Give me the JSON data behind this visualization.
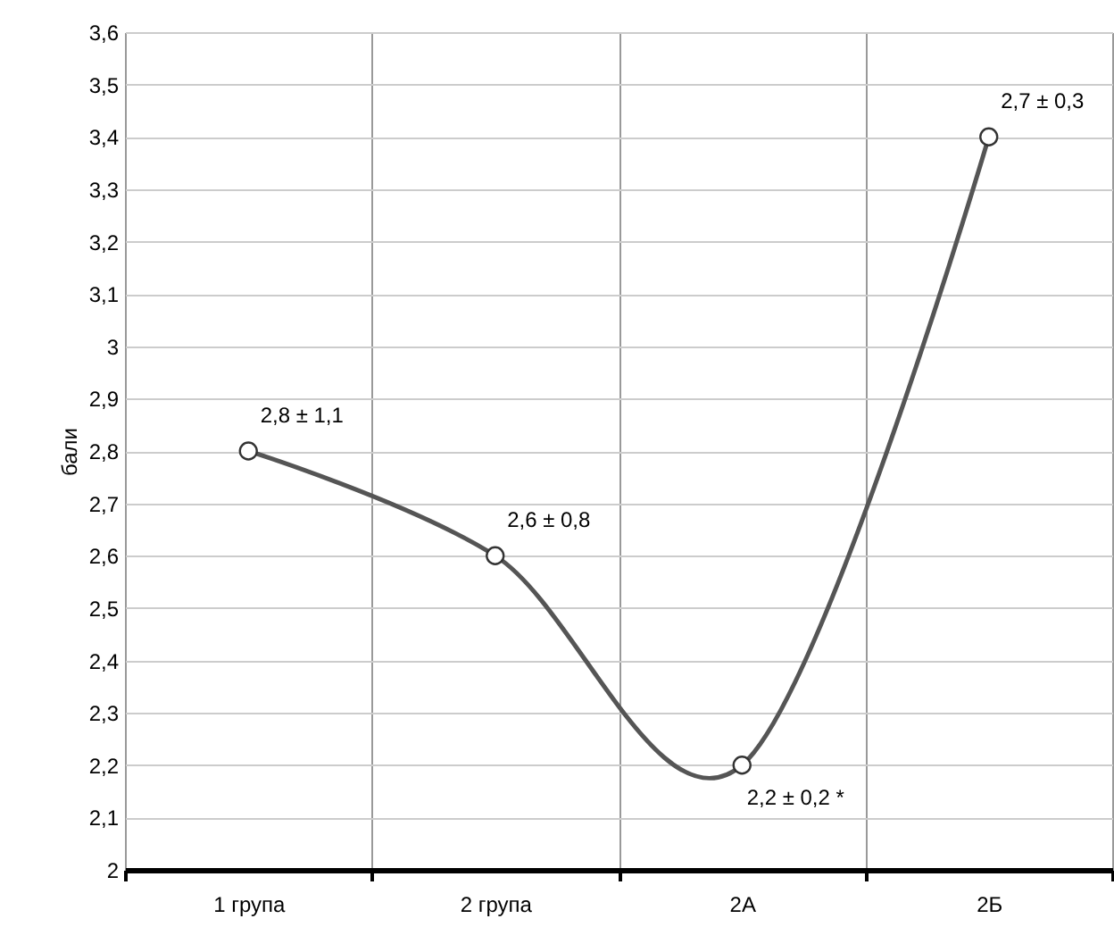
{
  "chart_data": {
    "type": "line",
    "ylabel": "бали",
    "categories": [
      "1 група",
      "2 група",
      "2А",
      "2Б"
    ],
    "series": [
      {
        "color": "#555555",
        "values": [
          2.8,
          2.6,
          2.2,
          3.4
        ]
      }
    ],
    "value_labels": [
      "2,8 ± 1,1",
      "2,6 ± 0,8",
      "2,2 ± 0,2 *",
      "2,7 ± 0,3"
    ],
    "ylim": [
      2,
      3.6
    ],
    "yticks": [
      2,
      {
        "value": 2.1,
        "label": "2,1"
      },
      {
        "value": 2.2,
        "label": "2,2"
      },
      {
        "value": 2.3,
        "label": "2,3"
      },
      {
        "value": 2.4,
        "label": "2,4"
      },
      {
        "value": 2.5,
        "label": "2,5"
      },
      {
        "value": 2.6,
        "label": "2,6"
      },
      {
        "value": 2.7,
        "label": "2,7"
      },
      {
        "value": 2.8,
        "label": "2,8"
      },
      {
        "value": 2.9,
        "label": "2,9"
      },
      3,
      {
        "value": 3.1,
        "label": "3,1"
      },
      {
        "value": 3.2,
        "label": "3,2"
      },
      {
        "value": 3.3,
        "label": "3,3"
      },
      {
        "value": 3.4,
        "label": "3,4"
      },
      {
        "value": 3.5,
        "label": "3,5"
      },
      {
        "value": 3.6,
        "label": "3,6"
      }
    ],
    "grid": true,
    "marker": "circle",
    "line_style": "solid"
  }
}
